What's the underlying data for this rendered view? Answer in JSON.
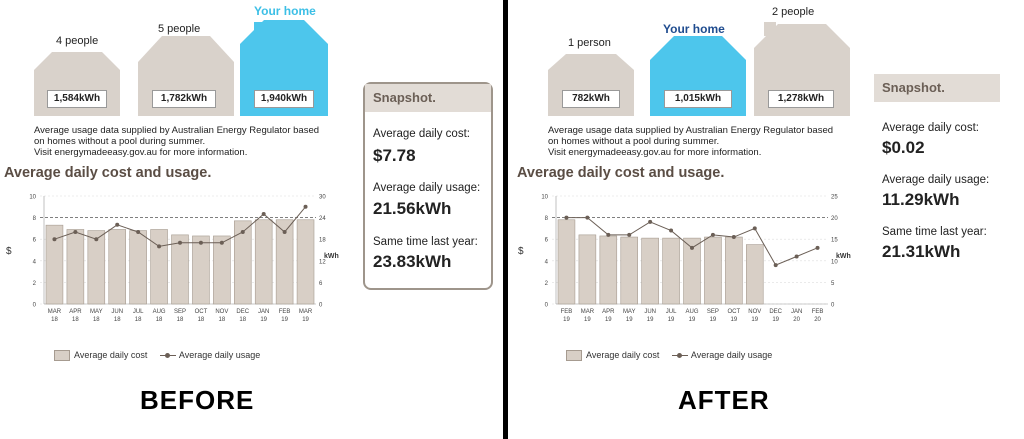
{
  "before": {
    "label": "BEFORE",
    "houses": [
      {
        "caption": "4 people",
        "kwh": "1,584kWh",
        "highlight": false
      },
      {
        "caption": "5 people",
        "kwh": "1,782kWh",
        "highlight": false
      },
      {
        "caption": "Your home",
        "kwh": "1,940kWh",
        "highlight": true
      }
    ],
    "note": [
      "Average usage data supplied by Australian Energy Regulator based",
      "on homes without a pool during summer.",
      "Visit energymadeeasy.gov.au for more information."
    ],
    "section_title": "Average daily cost and usage.",
    "snapshot": {
      "title": "Snapshot.",
      "cost_label": "Average daily cost:",
      "cost_value": "$7.78",
      "usage_label": "Average daily usage:",
      "usage_value": "21.56kWh",
      "last_year_label": "Same time last year:",
      "last_year_value": "23.83kWh"
    },
    "legend": {
      "cost": "Average daily cost",
      "usage": "Average daily usage"
    },
    "chart_data": {
      "type": "bar",
      "categories": [
        [
          "MAR",
          "18"
        ],
        [
          "APR",
          "18"
        ],
        [
          "MAY",
          "18"
        ],
        [
          "JUN",
          "18"
        ],
        [
          "JUL",
          "18"
        ],
        [
          "AUG",
          "18"
        ],
        [
          "SEP",
          "18"
        ],
        [
          "OCT",
          "18"
        ],
        [
          "NOV",
          "18"
        ],
        [
          "DEC",
          "18"
        ],
        [
          "JAN",
          "19"
        ],
        [
          "FEB",
          "19"
        ],
        [
          "MAR",
          "19"
        ]
      ],
      "series": [
        {
          "name": "Average daily cost",
          "axis": "left",
          "type": "bar",
          "values": [
            7.3,
            6.9,
            6.8,
            6.9,
            6.8,
            6.9,
            6.4,
            6.3,
            6.3,
            7.7,
            7.8,
            7.8,
            7.8
          ]
        },
        {
          "name": "Average daily usage",
          "axis": "right",
          "type": "line",
          "values": [
            18,
            20,
            18,
            22,
            20,
            16,
            17,
            17,
            17,
            20,
            25,
            20,
            27
          ]
        }
      ],
      "ylabel_left": "$",
      "ylabel_right": "kWh",
      "yticks_left": [
        0,
        2,
        4,
        6,
        8,
        10
      ],
      "yticks_right": [
        0,
        6,
        12,
        18,
        24,
        30
      ],
      "ylim_left": [
        0,
        10
      ],
      "ylim_right": [
        0,
        30
      ]
    }
  },
  "after": {
    "label": "AFTER",
    "houses": [
      {
        "caption": "1 person",
        "kwh": "782kWh",
        "highlight": false
      },
      {
        "caption": "Your home",
        "kwh": "1,015kWh",
        "highlight": true
      },
      {
        "caption": "2 people",
        "kwh": "1,278kWh",
        "highlight": false
      }
    ],
    "note": [
      "Average usage data supplied by Australian Energy Regulator based",
      "on homes without a pool during summer.",
      "Visit energymadeeasy.gov.au for more information."
    ],
    "section_title": "Average daily cost and usage.",
    "snapshot": {
      "title": "Snapshot.",
      "cost_label": "Average daily cost:",
      "cost_value": "$0.02",
      "usage_label": "Average daily usage:",
      "usage_value": "11.29kWh",
      "last_year_label": "Same time last year:",
      "last_year_value": "21.31kWh"
    },
    "legend": {
      "cost": "Average daily cost",
      "usage": "Average daily usage"
    },
    "chart_data": {
      "type": "bar",
      "categories": [
        [
          "FEB",
          "19"
        ],
        [
          "MAR",
          "19"
        ],
        [
          "APR",
          "19"
        ],
        [
          "MAY",
          "19"
        ],
        [
          "JUN",
          "19"
        ],
        [
          "JUL",
          "19"
        ],
        [
          "AUG",
          "19"
        ],
        [
          "SEP",
          "19"
        ],
        [
          "OCT",
          "19"
        ],
        [
          "NOV",
          "19"
        ],
        [
          "DEC",
          "19"
        ],
        [
          "JAN",
          "20"
        ],
        [
          "FEB",
          "20"
        ]
      ],
      "series": [
        {
          "name": "Average daily cost",
          "axis": "left",
          "type": "bar",
          "values": [
            7.8,
            6.4,
            6.3,
            6.2,
            6.1,
            6.1,
            6.1,
            6.2,
            6.2,
            5.5,
            null,
            null,
            null
          ]
        },
        {
          "name": "Average daily usage",
          "axis": "right",
          "type": "line",
          "values": [
            20,
            20,
            16,
            16,
            19,
            17,
            13,
            16,
            15.5,
            17.5,
            9,
            11,
            13
          ]
        }
      ],
      "ylabel_left": "$",
      "ylabel_right": "kWh",
      "yticks_left": [
        0,
        2,
        4,
        6,
        8,
        10
      ],
      "yticks_right": [
        0,
        5,
        10,
        15,
        20,
        25
      ],
      "ylim_left": [
        0,
        10
      ],
      "ylim_right": [
        0,
        25
      ]
    }
  },
  "colors": {
    "house_grey": "#d9d2cb",
    "house_highlight": "#4dc6ec",
    "bar_fill": "#d8cfc6",
    "bar_stroke": "#a69b90",
    "line": "#6b5f56",
    "snapshot_head": "#e2dcd6"
  }
}
